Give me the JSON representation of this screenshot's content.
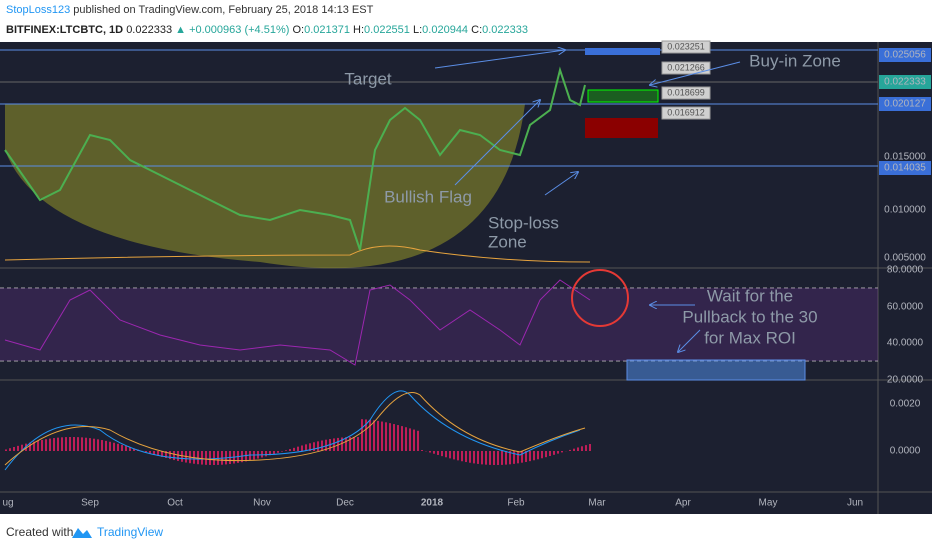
{
  "header": {
    "author": "StopLoss123",
    "published": "published on TradingView.com, February 25, 2018 14:13 EST",
    "symbol": "BITFINEX:LTCBTC, 1D",
    "last": "0.022333",
    "change": "▲ +0.000963 (+4.51%)",
    "o": "O:",
    "ov": "0.021371",
    "h": "H:",
    "hv": "0.022551",
    "l": "L:",
    "lv": "0.020944",
    "c": "C:",
    "cv": "0.022333"
  },
  "annotations": [
    "Target",
    "Buy-in Zone",
    "Bullish Flag",
    "Stop-loss",
    "Zone",
    "Wait for the",
    "Pullback to the 30",
    "for Max ROI"
  ],
  "level_labels": [
    "0.023251",
    "0.021266",
    "0.018699",
    "0.016912"
  ],
  "price_axis": [
    "0.025056",
    "0.022333",
    "0.020127",
    "0.015000",
    "0.014035",
    "0.010000",
    "0.005000"
  ],
  "rsi_axis": [
    "80.0000",
    "60.0000",
    "40.0000",
    "20.0000"
  ],
  "macd_axis": [
    "0.0020",
    "0.0000"
  ],
  "time_axis": [
    "ug",
    "Sep",
    "Oct",
    "Nov",
    "Dec",
    "2018",
    "Feb",
    "Mar",
    "Apr",
    "May",
    "Jun"
  ],
  "footer": {
    "created": "Created with",
    "brand": "TradingView"
  }
}
